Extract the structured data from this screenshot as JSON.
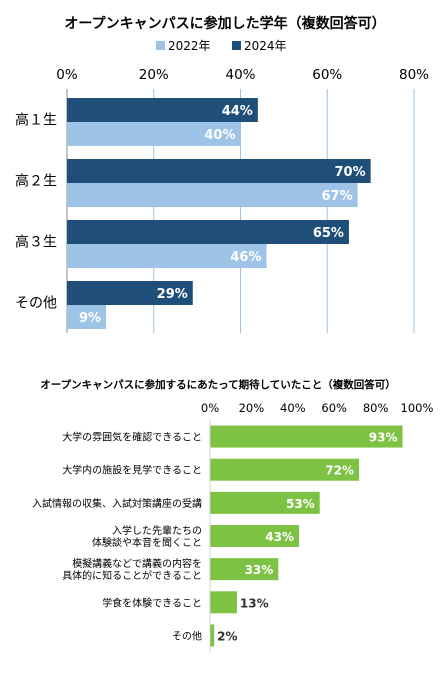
{
  "chart_data": [
    {
      "type": "bar",
      "orientation": "horizontal",
      "title": "オープンキャンパスに参加した学年（複数回答可）",
      "categories": [
        "高１生",
        "高２生",
        "高３生",
        "その他"
      ],
      "series": [
        {
          "name": "2024年",
          "color": "#1f4e79",
          "values": [
            44,
            70,
            65,
            29
          ]
        },
        {
          "name": "2022年",
          "color": "#9dc3e6",
          "values": [
            40,
            67,
            46,
            9
          ]
        }
      ],
      "legend_order": [
        "2022年",
        "2024年"
      ],
      "legend_position": "top",
      "xlim": [
        0,
        80
      ],
      "xticks": [
        0,
        20,
        40,
        60,
        80
      ],
      "tick_labels": [
        "0%",
        "20%",
        "40%",
        "60%",
        "80%"
      ],
      "grid": true,
      "value_suffix": "%"
    },
    {
      "type": "bar",
      "orientation": "horizontal",
      "title": "オープンキャンパスに参加するにあたって期待していたこと（複数回答可）",
      "categories": [
        [
          "大学の雰囲気を確認できること"
        ],
        [
          "大学内の施設を見学できること"
        ],
        [
          "入試情報の収集、入試対策講座の受講"
        ],
        [
          "入学した先輩たちの",
          "体験談や本音を聞くこと"
        ],
        [
          "模擬講義などで講義の内容を",
          "具体的に知ることができること"
        ],
        [
          "学食を体験できること"
        ],
        [
          "その他"
        ]
      ],
      "series": [
        {
          "name": "",
          "color": "#7dc243",
          "values": [
            93,
            72,
            53,
            43,
            33,
            13,
            2
          ]
        }
      ],
      "xlim": [
        0,
        100
      ],
      "xticks": [
        0,
        20,
        40,
        60,
        80,
        100
      ],
      "tick_labels": [
        "0%",
        "20%",
        "40%",
        "60%",
        "80%",
        "100%"
      ],
      "grid": false,
      "value_suffix": "%"
    }
  ]
}
